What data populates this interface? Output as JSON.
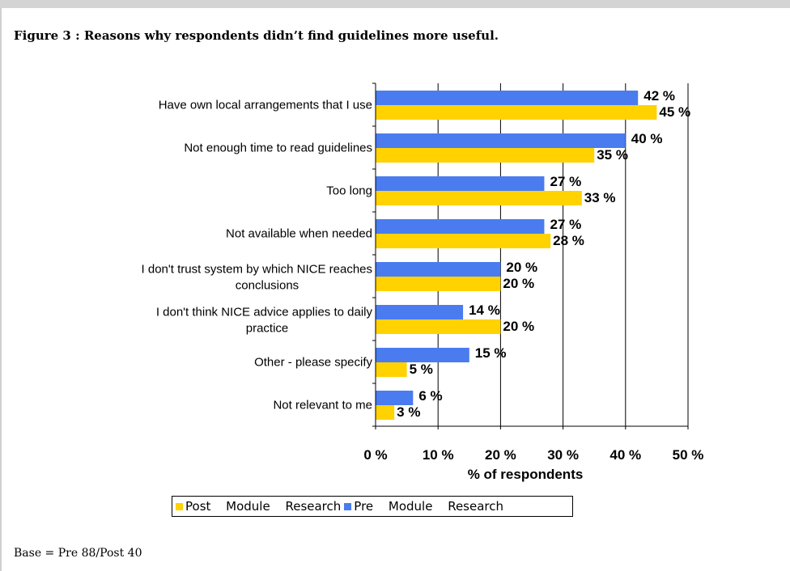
{
  "figure_title": "Figure 3 : Reasons why respondents didn’t find guidelines more useful.",
  "footnote": "Base = Pre 88/Post 40",
  "colors": {
    "pre": "#4A7CF0",
    "post": "#FFD200",
    "grid": "#000000"
  },
  "chart_data": {
    "type": "bar",
    "orientation": "horizontal",
    "title": "",
    "xlabel": "% of respondents",
    "ylabel": "",
    "xlim": [
      0,
      50
    ],
    "x_ticks": [
      "0 %",
      "10 %",
      "20 %",
      "30 %",
      "40 %",
      "50 %"
    ],
    "grid": true,
    "legend_position": "bottom",
    "categories": [
      [
        "Have own local arrangements that I use"
      ],
      [
        "Not enough time to read guidelines"
      ],
      [
        "Too long"
      ],
      [
        "Not available when needed"
      ],
      [
        "I don't trust system by which NICE reaches",
        "conclusions"
      ],
      [
        "I don't think NICE advice applies to daily",
        "practice"
      ],
      [
        "Other - please specify"
      ],
      [
        "Not relevant to me"
      ]
    ],
    "series": [
      {
        "name": "Pre Module Research",
        "values": [
          42,
          40,
          27,
          27,
          20,
          14,
          15,
          6
        ],
        "labels": [
          "42 %",
          "40 %",
          "27 %",
          "27 %",
          "20 %",
          "14 %",
          "15 %",
          "6 %"
        ]
      },
      {
        "name": "Post Module Research",
        "values": [
          45,
          35,
          33,
          28,
          20,
          20,
          5,
          3
        ],
        "labels": [
          "45 %",
          "35 %",
          "33 %",
          "28 %",
          "20 %",
          "20 %",
          "5 %",
          "3 %"
        ]
      }
    ]
  },
  "legend": [
    {
      "name": "Post Module Research",
      "color": "#FFD200"
    },
    {
      "name": "Pre Module Research",
      "color": "#4A7CF0"
    }
  ]
}
